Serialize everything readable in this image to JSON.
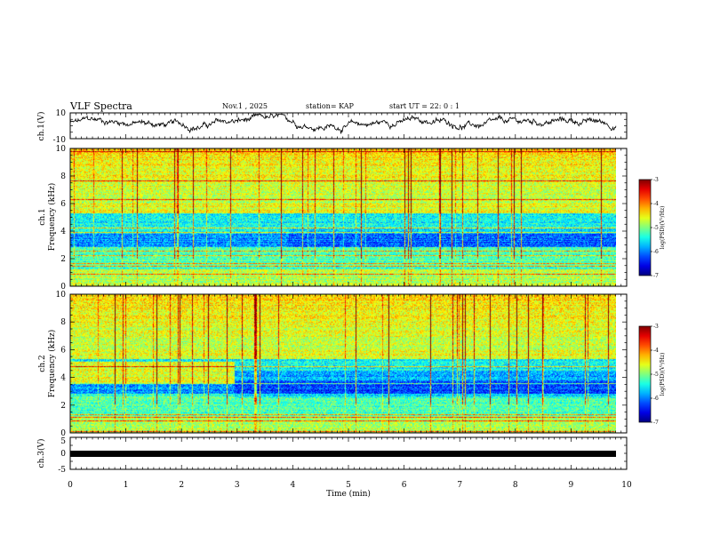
{
  "header": {
    "title": "VLF Spectra",
    "date": "Nov.1 , 2025",
    "station": "station= KAP",
    "start": "start UT = 22: 0 : 1"
  },
  "chart_data": [
    {
      "type": "line",
      "name": "ch1-waveform",
      "ylabel": "ch.1(V)",
      "ylim": [
        -10,
        10
      ],
      "yticks": [
        "10",
        "-10"
      ],
      "xlim": [
        0,
        10
      ],
      "description_values": "noisy waveform oscillating roughly between -3 and 7 V"
    },
    {
      "type": "heatmap",
      "name": "ch1-spectrogram",
      "ylabel": "ch.1 Frequency (kHz)",
      "ylabel_lines": [
        "ch.1",
        "Frequency (kHz)"
      ],
      "ylim": [
        0,
        10
      ],
      "yticks": [
        "0",
        "2",
        "4",
        "6",
        "8",
        "10"
      ],
      "xlim": [
        0,
        9.85
      ],
      "colorbar": {
        "label": "log(PSD)(V²/Hz)",
        "range": [
          -7,
          -3
        ],
        "ticks": [
          "-3",
          "-4",
          "-5",
          "-6",
          "-7"
        ]
      }
    },
    {
      "type": "heatmap",
      "name": "ch2-spectrogram",
      "ylabel": "ch.2 Frequency (kHz)",
      "ylabel_lines": [
        "ch.2",
        "Frequency (kHz)"
      ],
      "ylim": [
        0,
        10
      ],
      "yticks": [
        "0",
        "2",
        "4",
        "6",
        "8",
        "10"
      ],
      "xlim": [
        0,
        9.85
      ],
      "colorbar": {
        "label": "log(PSD)(V²/Hz)",
        "range": [
          -7,
          -3
        ],
        "ticks": [
          "-3",
          "-4",
          "-5",
          "-6",
          "-7"
        ]
      }
    },
    {
      "type": "line",
      "name": "ch3-waveform",
      "ylabel": "ch.3(V)",
      "ylim": [
        -5,
        5
      ],
      "yticks": [
        "5",
        "0",
        "-5"
      ],
      "xlim": [
        0,
        10
      ],
      "description_values": "flat dense trace near -0.8 V"
    }
  ],
  "xaxis": {
    "label": "Time (min)",
    "ticks": [
      "0",
      "1",
      "2",
      "3",
      "4",
      "5",
      "6",
      "7",
      "8",
      "9",
      "10"
    ]
  },
  "colors": {
    "axis": "#000000",
    "background": "#ffffff"
  }
}
